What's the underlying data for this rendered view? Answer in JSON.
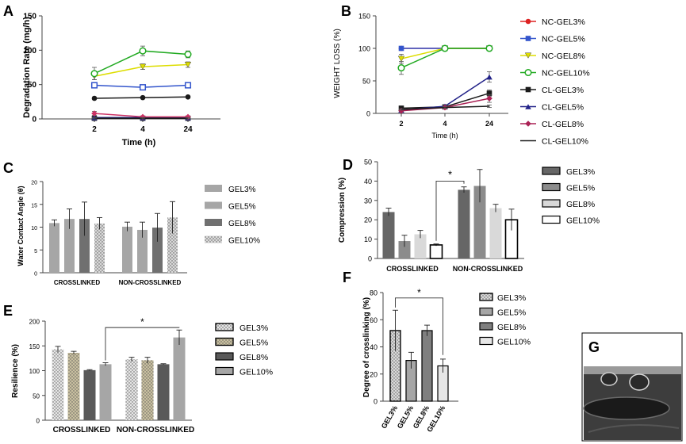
{
  "panel_labels": [
    "A",
    "B",
    "C",
    "D",
    "E",
    "F",
    "G"
  ],
  "photo_label": "G",
  "chart_data": [
    {
      "id": "A",
      "type": "line",
      "title": "",
      "xlabel": "Time (h)",
      "ylabel": "Degradation Rate (mg/h)",
      "categories": [
        "2",
        "4",
        "24"
      ],
      "ylim": [
        0,
        150
      ],
      "yticks": [
        0,
        50,
        100,
        150
      ],
      "series": [
        {
          "name": "NC-GEL3%",
          "color": "#1a1a1a",
          "marker": "circle-filled",
          "values": [
            30,
            31,
            32
          ],
          "err": [
            1,
            1,
            1
          ]
        },
        {
          "name": "NC-GEL5%",
          "color": "#3355cc",
          "marker": "square-open",
          "values": [
            49,
            46,
            49
          ],
          "err": [
            3,
            2,
            2
          ]
        },
        {
          "name": "NC-GEL8%",
          "color": "#dddd00",
          "marker": "triangle-down",
          "values": [
            62,
            76,
            79
          ],
          "err": [
            5,
            4,
            4
          ]
        },
        {
          "name": "NC-GEL10%",
          "color": "#22aa22",
          "marker": "circle-open",
          "values": [
            66,
            99,
            94
          ],
          "err": [
            9,
            7,
            5
          ]
        },
        {
          "name": "CL-GEL3%",
          "color": "#1a1a1a",
          "marker": "square-filled",
          "values": [
            1,
            1,
            1
          ],
          "err": [
            1,
            1,
            1
          ]
        },
        {
          "name": "CL-GEL5%",
          "color": "#222288",
          "marker": "triangle-up",
          "values": [
            2,
            2,
            2
          ],
          "err": [
            1,
            1,
            1
          ]
        },
        {
          "name": "CL-GEL8%",
          "color": "#cc3366",
          "marker": "diamond",
          "values": [
            8,
            3,
            3
          ],
          "err": [
            3,
            1,
            1
          ]
        },
        {
          "name": "CL-GEL10%",
          "color": "#1a1a1a",
          "marker": "none",
          "values": [
            1,
            1,
            1
          ],
          "err": [
            1,
            1,
            1
          ]
        }
      ]
    },
    {
      "id": "B",
      "type": "line",
      "title": "",
      "xlabel": "Time (h)",
      "ylabel": "WEIGHT LOSS (%)",
      "categories": [
        "2",
        "4",
        "24"
      ],
      "ylim": [
        0,
        150
      ],
      "yticks": [
        0,
        50,
        100,
        150
      ],
      "legend": [
        "NC-GEL3%",
        "NC-GEL5%",
        "NC-GEL8%",
        "NC-GEL10%",
        "CL-GEL3%",
        "CL-GEL5%",
        "CL-GEL8%",
        "CL-GEL10%"
      ],
      "series": [
        {
          "name": "NC-GEL3%",
          "color": "#dd2222",
          "marker": "circle-filled",
          "values": [
            100,
            100,
            100
          ],
          "err": [
            0,
            0,
            0
          ]
        },
        {
          "name": "NC-GEL5%",
          "color": "#3355cc",
          "marker": "square-filled",
          "values": [
            100,
            100,
            100
          ],
          "err": [
            0,
            0,
            0
          ]
        },
        {
          "name": "NC-GEL8%",
          "color": "#dddd00",
          "marker": "triangle-down",
          "values": [
            84,
            100,
            100
          ],
          "err": [
            7,
            0,
            0
          ]
        },
        {
          "name": "NC-GEL10%",
          "color": "#22aa22",
          "marker": "circle-open",
          "values": [
            70,
            100,
            100
          ],
          "err": [
            10,
            0,
            0
          ]
        },
        {
          "name": "CL-GEL3%",
          "color": "#1a1a1a",
          "marker": "square-filled",
          "values": [
            8,
            10,
            31
          ],
          "err": [
            2,
            2,
            5
          ]
        },
        {
          "name": "CL-GEL5%",
          "color": "#222288",
          "marker": "triangle-up",
          "values": [
            5,
            11,
            56
          ],
          "err": [
            2,
            2,
            8
          ]
        },
        {
          "name": "CL-GEL8%",
          "color": "#aa2255",
          "marker": "diamond",
          "values": [
            4,
            9,
            23
          ],
          "err": [
            1,
            2,
            6
          ]
        },
        {
          "name": "CL-GEL10%",
          "color": "#1a1a1a",
          "marker": "none",
          "values": [
            6,
            9,
            11
          ],
          "err": [
            1,
            1,
            2
          ]
        }
      ]
    },
    {
      "id": "C",
      "type": "bar",
      "title": "",
      "xlabel": "",
      "ylabel": "Water Contact Angle (θ)",
      "categories": [
        "CROSSLINKED",
        "NON-CROSSLINKED"
      ],
      "ylim": [
        0,
        20
      ],
      "yticks": [
        0,
        5,
        10,
        15,
        20
      ],
      "legend": [
        "GEL3%",
        "GEL5%",
        "GEL8%",
        "GEL10%"
      ],
      "series": [
        {
          "name": "GEL3%",
          "color": "#a6a6a6",
          "pattern": "none",
          "values": [
            10.9,
            10.1
          ],
          "err": [
            0.7,
            1.0
          ]
        },
        {
          "name": "GEL5%",
          "color": "#a6a6a6",
          "pattern": "none",
          "values": [
            11.8,
            9.4
          ],
          "err": [
            2.2,
            1.7
          ]
        },
        {
          "name": "GEL8%",
          "color": "#707070",
          "pattern": "none",
          "values": [
            11.8,
            9.9
          ],
          "err": [
            3.7,
            3.1
          ]
        },
        {
          "name": "GEL10%",
          "color": "#d9d9d9",
          "pattern": "dots",
          "values": [
            10.8,
            12.1
          ],
          "err": [
            1.3,
            3.5
          ]
        }
      ]
    },
    {
      "id": "D",
      "type": "bar",
      "title": "",
      "xlabel": "",
      "ylabel": "Compression (%)",
      "categories": [
        "CROSSLINKED",
        "NON-CROSSLINKED"
      ],
      "ylim": [
        0,
        50
      ],
      "yticks": [
        0,
        10,
        20,
        30,
        40,
        50
      ],
      "legend": [
        "GEL3%",
        "GEL5%",
        "GEL8%",
        "GEL10%"
      ],
      "significance": "*",
      "series": [
        {
          "name": "GEL3%",
          "color": "#666666",
          "pattern": "none",
          "values": [
            24,
            35.5
          ],
          "err": [
            2,
            1.5
          ]
        },
        {
          "name": "GEL5%",
          "color": "#8c8c8c",
          "pattern": "none",
          "values": [
            9,
            37.5
          ],
          "err": [
            3,
            8.5
          ]
        },
        {
          "name": "GEL8%",
          "color": "#d9d9d9",
          "pattern": "none",
          "values": [
            12.5,
            26
          ],
          "err": [
            2,
            2
          ]
        },
        {
          "name": "GEL10%",
          "color": "#ffffff",
          "pattern": "none",
          "values": [
            7,
            20
          ],
          "err": [
            0.5,
            5.5
          ]
        }
      ]
    },
    {
      "id": "E",
      "type": "bar",
      "title": "",
      "xlabel": "",
      "ylabel": "Resilience (%)",
      "categories": [
        "CROSSLINKED",
        "NON-CROSSLINKED"
      ],
      "ylim": [
        0,
        200
      ],
      "yticks": [
        0,
        50,
        100,
        150,
        200
      ],
      "legend": [
        "GEL3%",
        "GEL5%",
        "GEL8%",
        "GEL10%"
      ],
      "significance": "*",
      "series": [
        {
          "name": "GEL3%",
          "color": "#e6e6e6",
          "pattern": "dots",
          "values": [
            143,
            123
          ],
          "err": [
            6,
            4
          ]
        },
        {
          "name": "GEL5%",
          "color": "#c9c0a0",
          "pattern": "dots",
          "values": [
            136,
            121
          ],
          "err": [
            3,
            6
          ]
        },
        {
          "name": "GEL8%",
          "color": "#595959",
          "pattern": "none",
          "values": [
            101,
            113
          ],
          "err": [
            1,
            1
          ]
        },
        {
          "name": "GEL10%",
          "color": "#a6a6a6",
          "pattern": "none",
          "values": [
            113,
            167
          ],
          "err": [
            3,
            15
          ]
        }
      ]
    },
    {
      "id": "F",
      "type": "bar",
      "title": "",
      "xlabel": "",
      "ylabel": "Degree of crosslinking (%)",
      "categories": [
        "GEL3%",
        "GEL5%",
        "GEL8%",
        "GEL10%"
      ],
      "ylim": [
        0,
        80
      ],
      "yticks": [
        0,
        20,
        40,
        60,
        80
      ],
      "legend": [
        "GEL3%",
        "GEL5%",
        "GEL8%",
        "GEL10%"
      ],
      "significance": "*",
      "series": [
        {
          "name": "Degree of crosslinking",
          "colors": [
            "#d9d9d9",
            "#a6a6a6",
            "#7f7f7f",
            "#e6e6e6"
          ],
          "patterns": [
            "dots",
            "none",
            "none",
            "none"
          ],
          "values": [
            52,
            30,
            52,
            26
          ],
          "err": [
            15,
            6,
            4,
            5
          ]
        }
      ]
    }
  ]
}
